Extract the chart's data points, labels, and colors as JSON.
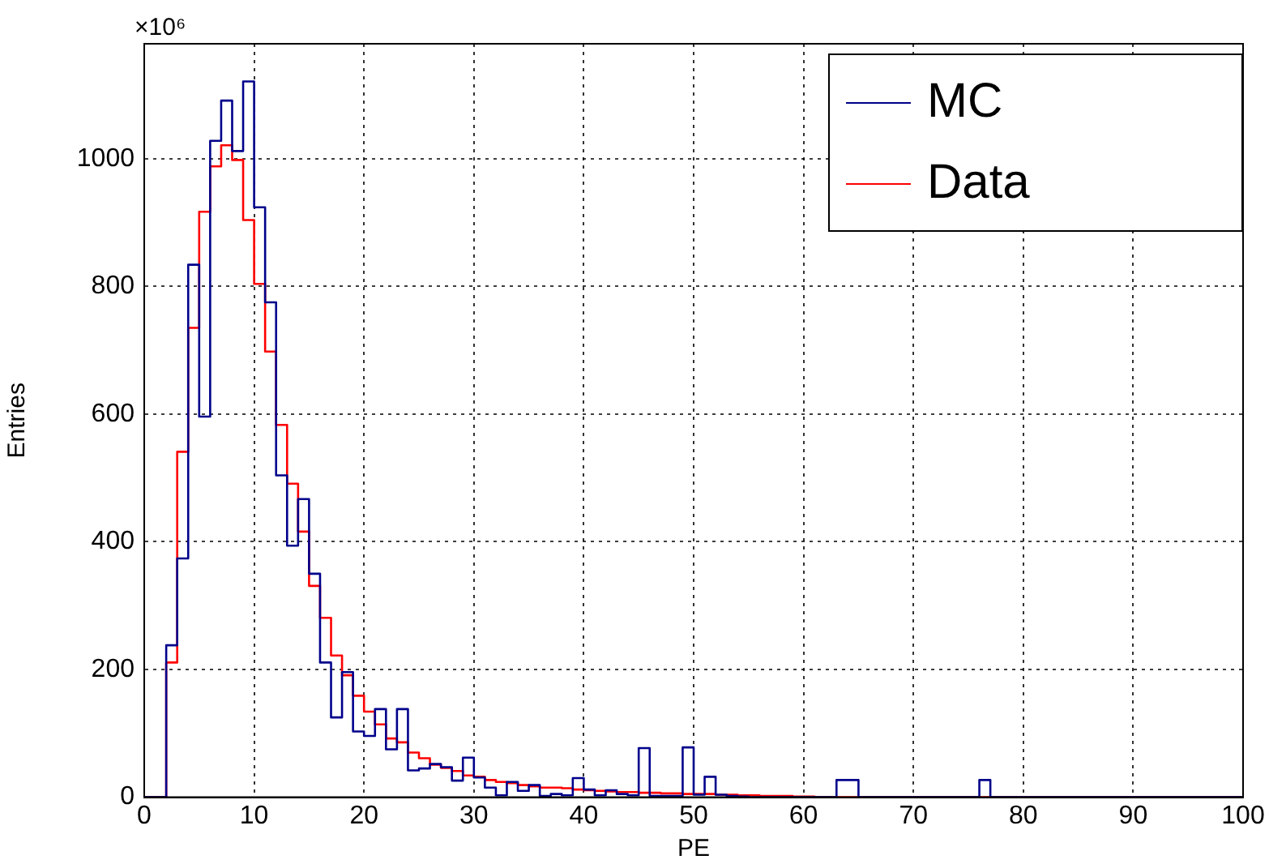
{
  "chart_data": {
    "type": "histogram",
    "xlabel": "PE",
    "ylabel": "Entries",
    "annotations": [
      "×10⁶"
    ],
    "bins": [
      0,
      1,
      2,
      3,
      4,
      5,
      6,
      7,
      8,
      9,
      10,
      11,
      12,
      13,
      14,
      15,
      16,
      17,
      18,
      19,
      20,
      21,
      22,
      23,
      24,
      25,
      26,
      27,
      28,
      29,
      30,
      31,
      32,
      33,
      34,
      35,
      36,
      37,
      38,
      39,
      40,
      41,
      42,
      43,
      44,
      45,
      46,
      47,
      48,
      49,
      50,
      51,
      52,
      53,
      54,
      55,
      56,
      57,
      58,
      59,
      60,
      61,
      62,
      63,
      64,
      65,
      66,
      67,
      68,
      69,
      70,
      71,
      72,
      73,
      74,
      75,
      76,
      77,
      78,
      79,
      80,
      81,
      82,
      83,
      84,
      85,
      86,
      87,
      88,
      89,
      90,
      91,
      92,
      93,
      94,
      95,
      96,
      97,
      98,
      99,
      100
    ],
    "series": [
      {
        "name": "MC",
        "color": "#00008b",
        "values": [
          0,
          0,
          238,
          374,
          834,
          596,
          1028,
          1091,
          1012,
          1121,
          924,
          775,
          504,
          394,
          467,
          350,
          211,
          125,
          196,
          103,
          96,
          138,
          75,
          138,
          42,
          45,
          52,
          47,
          26,
          62,
          31,
          15,
          3,
          24,
          10,
          19,
          2,
          5,
          3,
          30,
          12,
          3,
          11,
          5,
          3,
          77,
          2,
          2,
          2,
          78,
          4,
          32,
          4,
          2,
          1,
          0,
          0,
          0,
          0,
          0,
          0,
          0,
          0,
          27,
          27,
          0,
          0,
          0,
          0,
          0,
          0,
          0,
          0,
          0,
          0,
          0,
          27,
          0,
          0,
          0,
          0,
          0,
          0,
          0,
          0,
          0,
          0,
          0,
          0,
          0,
          0,
          0,
          0,
          0,
          0,
          0,
          0,
          0,
          0,
          0
        ]
      },
      {
        "name": "Data",
        "color": "#ff0000",
        "values": [
          0,
          0,
          211,
          541,
          735,
          917,
          988,
          1021,
          998,
          904,
          804,
          698,
          583,
          491,
          416,
          331,
          281,
          222,
          191,
          159,
          134,
          114,
          92,
          86,
          70,
          61,
          51,
          46,
          41,
          34,
          32,
          27,
          24,
          22,
          19,
          17,
          15,
          15,
          14,
          12,
          11,
          10,
          9,
          8,
          8,
          7,
          7,
          6,
          6,
          5,
          5,
          5,
          4,
          4,
          3,
          3,
          2,
          2,
          2,
          1,
          1,
          0,
          0,
          0,
          0,
          0,
          0,
          0,
          0,
          0,
          0,
          0,
          0,
          0,
          0,
          0,
          0,
          0,
          0,
          0,
          0,
          0,
          0,
          0,
          0,
          0,
          0,
          0,
          0,
          0,
          0,
          0,
          0,
          0,
          0,
          0,
          0,
          0,
          0,
          0
        ]
      }
    ],
    "xlim": [
      0,
      100
    ],
    "xticks": [
      0,
      10,
      20,
      30,
      40,
      50,
      60,
      70,
      80,
      90,
      100
    ],
    "ylim": [
      0,
      1180
    ],
    "yticks": [
      0,
      200,
      400,
      600,
      800,
      1000
    ],
    "grid": true,
    "legend": "top right"
  }
}
